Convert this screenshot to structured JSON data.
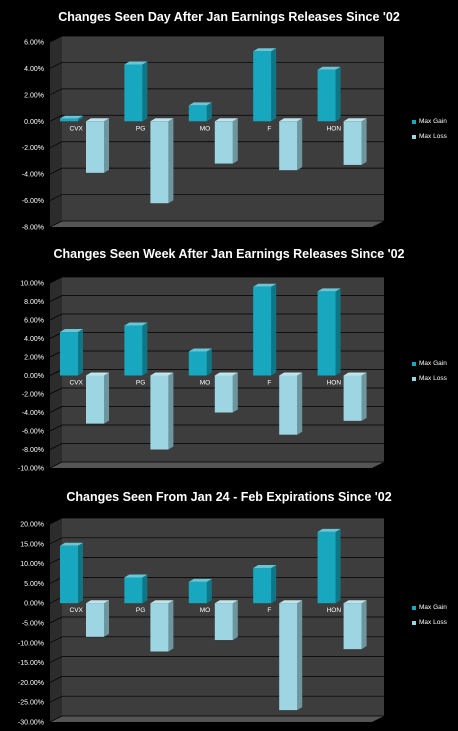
{
  "colors": {
    "gain": "#17a8c0",
    "loss": "#9dd6e2",
    "plot_bg": "#3d3d3d"
  },
  "legend": {
    "gain_label": "Max Gain",
    "loss_label": "Max Loss"
  },
  "chart_data": [
    {
      "type": "bar",
      "title": "Changes Seen Day After Jan Earnings Releases Since '02",
      "categories": [
        "CVX",
        "PG",
        "MO",
        "F",
        "HON"
      ],
      "series": [
        {
          "name": "Max Gain",
          "values": [
            0.2,
            4.3,
            1.2,
            5.3,
            3.9
          ]
        },
        {
          "name": "Max Loss",
          "values": [
            -3.9,
            -6.2,
            -3.2,
            -3.7,
            -3.3
          ]
        }
      ],
      "ylim": [
        -8,
        6
      ],
      "ticks": [
        "6.00%",
        "4.00%",
        "2.00%",
        "0.00%",
        "-2.00%",
        "-4.00%",
        "-6.00%",
        "-8.00%"
      ],
      "tick_values": [
        6,
        4,
        2,
        0,
        -2,
        -4,
        -6,
        -8
      ],
      "legend_position": "right"
    },
    {
      "type": "bar",
      "title": "Changes Seen Week After Jan Earnings Releases Since '02",
      "categories": [
        "CVX",
        "PG",
        "MO",
        "F",
        "HON"
      ],
      "series": [
        {
          "name": "Max Gain",
          "values": [
            4.7,
            5.4,
            2.6,
            9.6,
            9.1
          ]
        },
        {
          "name": "Max Loss",
          "values": [
            -5.2,
            -8.0,
            -4.0,
            -6.4,
            -4.9
          ]
        }
      ],
      "ylim": [
        -10,
        10
      ],
      "ticks": [
        "10.00%",
        "8.00%",
        "6.00%",
        "4.00%",
        "2.00%",
        "0.00%",
        "-2.00%",
        "-4.00%",
        "-6.00%",
        "-8.00%",
        "-10.00%"
      ],
      "tick_values": [
        10,
        8,
        6,
        4,
        2,
        0,
        -2,
        -4,
        -6,
        -8,
        -10
      ],
      "legend_position": "right"
    },
    {
      "type": "bar",
      "title": "Changes Seen From Jan 24 - Feb Expirations Since '02",
      "categories": [
        "CVX",
        "PG",
        "MO",
        "F",
        "HON"
      ],
      "series": [
        {
          "name": "Max Gain",
          "values": [
            14.5,
            6.5,
            5.4,
            8.9,
            18.0
          ]
        },
        {
          "name": "Max Loss",
          "values": [
            -8.5,
            -12.2,
            -9.3,
            -27.0,
            -11.6
          ]
        }
      ],
      "ylim": [
        -30,
        20
      ],
      "ticks": [
        "20.00%",
        "15.00%",
        "10.00%",
        "5.00%",
        "0.00%",
        "-5.00%",
        "-10.00%",
        "-15.00%",
        "-20.00%",
        "-25.00%",
        "-30.00%"
      ],
      "tick_values": [
        20,
        15,
        10,
        5,
        0,
        -5,
        -10,
        -15,
        -20,
        -25,
        -30
      ],
      "legend_position": "right"
    }
  ]
}
